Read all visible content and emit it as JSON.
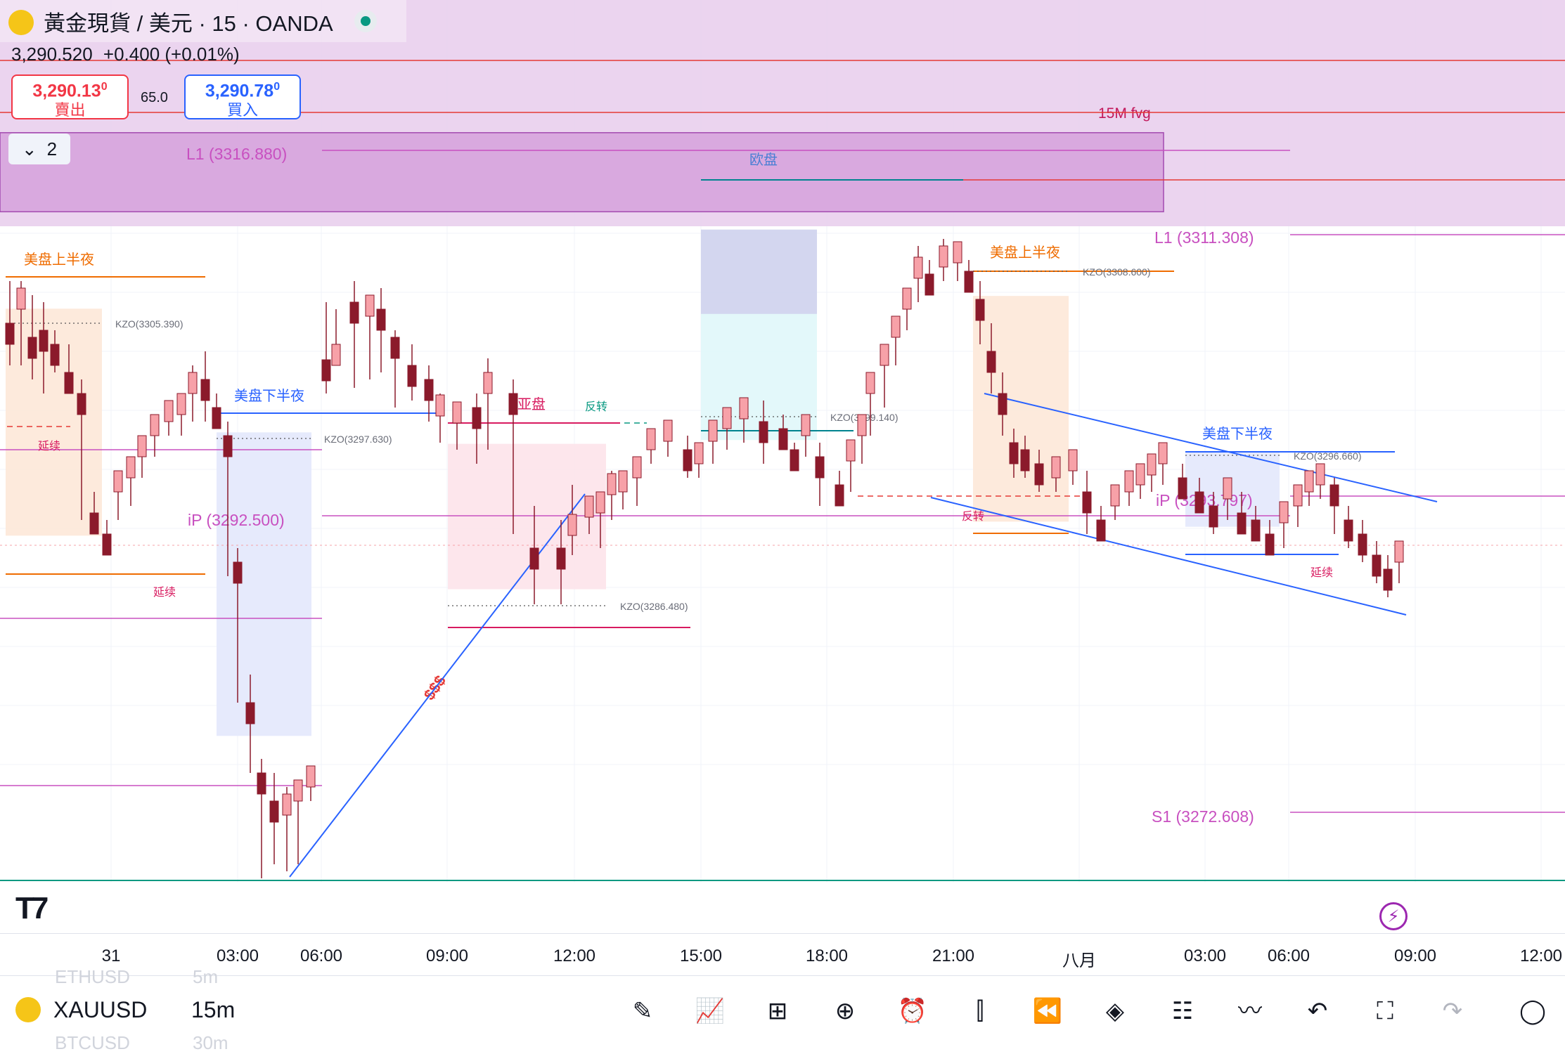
{
  "header": {
    "title": "黃金現貨 / 美元 · 15 · OANDA",
    "last_price": "3,290.520",
    "change": "+0.400 (+0.01%)",
    "sell_price": "3,290.13",
    "sell_price_small": "0",
    "sell_label": "賣出",
    "spread": "65.0",
    "buy_price": "3,290.78",
    "buy_price_small": "0",
    "buy_label": "買入",
    "layers_count": "2"
  },
  "chart_data": {
    "type": "candlestick",
    "symbol": "XAUUSD",
    "timeframe": "15m",
    "ylim": [
      3263.0,
      3330.0
    ],
    "levels": [
      {
        "label": "L1 (3316.880)",
        "value": 3316.88,
        "color": "#c850c0"
      },
      {
        "label": "L1 (3311.308)",
        "value": 3311.308,
        "color": "#c850c0"
      },
      {
        "label": "iP (3292.500)",
        "value": 3292.5,
        "color": "#c850c0"
      },
      {
        "label": "iP (3293.797)",
        "value": 3293.797,
        "color": "#c850c0"
      },
      {
        "label": "S1 (3272.608)",
        "value": 3272.608,
        "color": "#c850c0"
      }
    ],
    "zones": [
      {
        "label": "15M fvg",
        "top": 3321.8,
        "bottom": 3315.6
      },
      {
        "label": "美盘上半夜",
        "top": 3308.0,
        "bottom": 3290.2
      },
      {
        "label": "美盘下半夜",
        "top": 3298.3,
        "bottom": 3274.5
      },
      {
        "label": "亚盘",
        "top": 3297.4,
        "bottom": 3286.0
      },
      {
        "label": "欧盘",
        "top": 3314.2,
        "bottom": 3297.7
      },
      {
        "label": "美盘上半夜",
        "top": 3309.0,
        "bottom": 3291.3
      },
      {
        "label": "美盘下半夜",
        "top": 3296.8,
        "bottom": 3290.9
      }
    ],
    "kzo": [
      {
        "label": "KZO(3305.390)",
        "value": 3305.39
      },
      {
        "label": "KZO(3297.630)",
        "value": 3297.63
      },
      {
        "label": "KZO(3286.480)",
        "value": 3286.48
      },
      {
        "label": "KZO(3299.140)",
        "value": 3299.14
      },
      {
        "label": "KZO(3308.600)",
        "value": 3308.6
      },
      {
        "label": "KZO(3296.660)",
        "value": 3296.66
      }
    ],
    "annotations": [
      "延续",
      "延续",
      "反转",
      "$$$",
      "反转",
      "延续"
    ],
    "x_ticks": [
      "31",
      "03:00",
      "06:00",
      "09:00",
      "12:00",
      "15:00",
      "18:00",
      "21:00",
      "八月",
      "03:00",
      "06:00",
      "09:00",
      "12:00"
    ],
    "colors": {
      "up": "#f7a1a8",
      "down": "#8b1a2b",
      "level": "#c850c0",
      "fvg": "#d9b0e0"
    }
  },
  "bottom_bar": {
    "symbol": "XAUUSD",
    "timeframe": "15m",
    "ghost_prev_symbol": "ETHUSD",
    "ghost_prev_tf": "5m",
    "ghost_next_symbol": "BTCUSD",
    "ghost_next_tf": "30m",
    "tools": [
      "pen-icon",
      "indicators-icon",
      "grid-icon",
      "add-icon",
      "alarm-icon",
      "candle-icon",
      "replay-icon",
      "layers-icon",
      "settings-icon",
      "compare-icon",
      "undo-icon",
      "fullscreen-icon",
      "redo-icon",
      "comment-icon"
    ]
  }
}
